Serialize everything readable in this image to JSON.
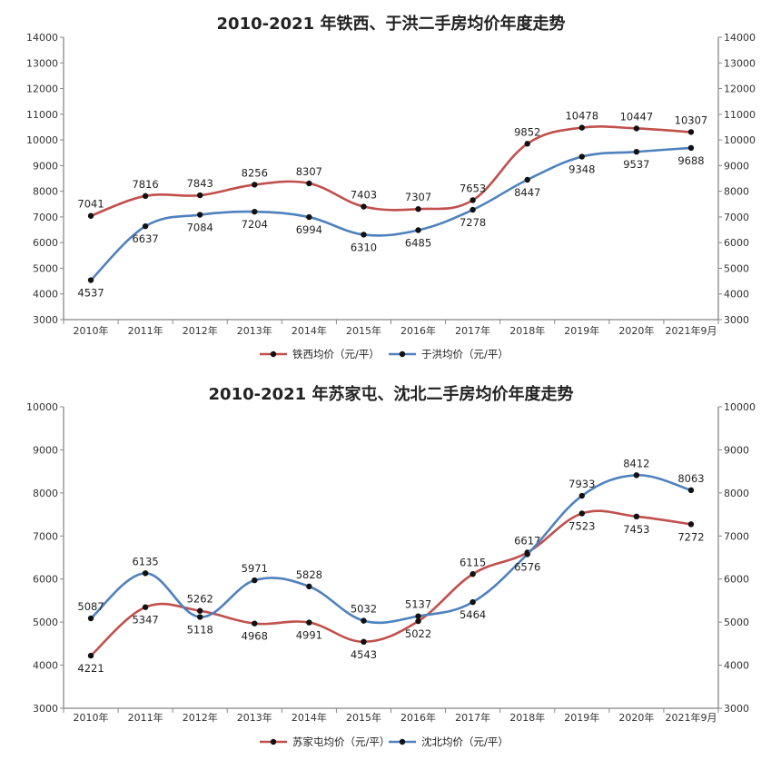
{
  "chart_data": [
    {
      "type": "line",
      "title": "2010-2021 年铁西、于洪二手房均价年度走势",
      "categories": [
        "2010年",
        "2011年",
        "2012年",
        "2013年",
        "2014年",
        "2015年",
        "2016年",
        "2017年",
        "2018年",
        "2019年",
        "2020年",
        "2021年9月"
      ],
      "ylim": [
        3000,
        14000
      ],
      "ystep": 1000,
      "grid": false,
      "legend_position": "bottom-center",
      "series": [
        {
          "name": "铁西均价（元/平）",
          "color": "#c0504d",
          "values": [
            7041,
            7816,
            7843,
            8256,
            8307,
            7403,
            7307,
            7653,
            9852,
            10478,
            10447,
            10307
          ]
        },
        {
          "name": "于洪均价（元/平）",
          "color": "#4f81bd",
          "values": [
            4537,
            6637,
            7084,
            7204,
            6994,
            6310,
            6485,
            7278,
            8447,
            9348,
            9537,
            9688
          ]
        }
      ]
    },
    {
      "type": "line",
      "title": "2010-2021 年苏家屯、沈北二手房均价年度走势",
      "categories": [
        "2010年",
        "2011年",
        "2012年",
        "2013年",
        "2014年",
        "2015年",
        "2016年",
        "2017年",
        "2018年",
        "2019年",
        "2020年",
        "2021年9月"
      ],
      "ylim": [
        3000,
        10000
      ],
      "ystep": 1000,
      "grid": false,
      "legend_position": "bottom-center",
      "series": [
        {
          "name": "苏家屯均价（元/平）",
          "color": "#c0504d",
          "values": [
            4221,
            5347,
            5262,
            4968,
            4991,
            4543,
            5022,
            6115,
            6617,
            7523,
            7453,
            7272
          ]
        },
        {
          "name": "沈北均价（元/平）",
          "color": "#4f81bd",
          "values": [
            5087,
            6135,
            5118,
            5971,
            5828,
            5032,
            5137,
            5464,
            6576,
            7933,
            8412,
            8063
          ]
        }
      ]
    }
  ]
}
